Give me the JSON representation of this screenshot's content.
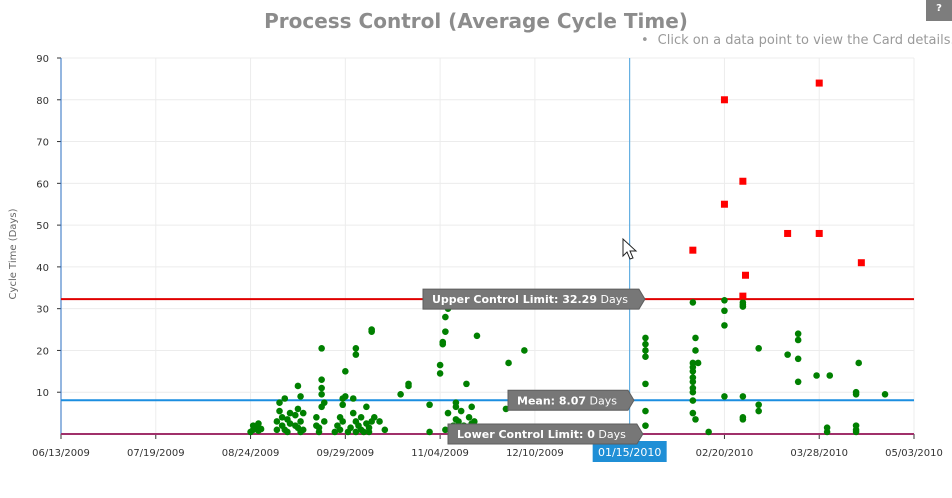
{
  "page": {
    "help_label": "?",
    "hint_bullet": "•",
    "hint_text": "Click on a data point to view the Card details."
  },
  "colors": {
    "normal_point": "#008000",
    "outlier_point": "#ff0000",
    "upper_control_limit": "#e00000",
    "mean": "#1b8ee0",
    "lower_control_limit": "#a0306a",
    "limit_label_bg": "#777777",
    "crosshair": "#4aa3df",
    "axis_highlight_bg": "#1f8fd6",
    "grid": "#ececec"
  },
  "chart_data": {
    "type": "scatter",
    "title": "Process Control (Average Cycle Time)",
    "xlabel": "",
    "ylabel": "Cycle Time (Days)",
    "x_type": "date",
    "xlim": [
      "2009-06-13",
      "2010-05-03"
    ],
    "ylim": [
      0,
      90
    ],
    "x_ticks": [
      "06/13/2009",
      "07/19/2009",
      "08/24/2009",
      "09/29/2009",
      "11/04/2009",
      "12/10/2009",
      "01/15/2010",
      "02/20/2010",
      "03/28/2010",
      "05/03/2010"
    ],
    "y_ticks": [
      10,
      20,
      30,
      40,
      50,
      60,
      70,
      80,
      90
    ],
    "grid": true,
    "crosshair_date": "01/15/2010",
    "reference_lines": [
      {
        "name": "upper_control_limit",
        "label": "Upper Control Limit:",
        "value_text": "32.29",
        "unit": "Days",
        "value": 32.29
      },
      {
        "name": "mean",
        "label": "Mean:",
        "value_text": "8.07",
        "unit": "Days",
        "value": 8.07
      },
      {
        "name": "lower_control_limit",
        "label": "Lower Control Limit:",
        "value_text": "0",
        "unit": "Days",
        "value": 0
      }
    ],
    "series": [
      {
        "marker": "circle",
        "points": [
          [
            "2009-08-24",
            0.5
          ],
          [
            "2009-08-25",
            1
          ],
          [
            "2009-08-25",
            2
          ],
          [
            "2009-08-26",
            1.5
          ],
          [
            "2009-08-27",
            0.8
          ],
          [
            "2009-08-28",
            1.2
          ],
          [
            "2009-08-27",
            2.5
          ],
          [
            "2009-09-03",
            1
          ],
          [
            "2009-09-03",
            3
          ],
          [
            "2009-09-04",
            5.5
          ],
          [
            "2009-09-04",
            7.5
          ],
          [
            "2009-09-05",
            2
          ],
          [
            "2009-09-05",
            4
          ],
          [
            "2009-09-06",
            8.5
          ],
          [
            "2009-09-06",
            1
          ],
          [
            "2009-09-07",
            0.5
          ],
          [
            "2009-09-07",
            3.5
          ],
          [
            "2009-09-08",
            5
          ],
          [
            "2009-09-08",
            2.5
          ],
          [
            "2009-09-10",
            2
          ],
          [
            "2009-09-10",
            4.5
          ],
          [
            "2009-09-11",
            6
          ],
          [
            "2009-09-11",
            11.5
          ],
          [
            "2009-09-12",
            9
          ],
          [
            "2009-09-11",
            1.5
          ],
          [
            "2009-09-12",
            0.5
          ],
          [
            "2009-09-12",
            3
          ],
          [
            "2009-09-13",
            5
          ],
          [
            "2009-09-13",
            1
          ],
          [
            "2009-09-18",
            2
          ],
          [
            "2009-09-18",
            4
          ],
          [
            "2009-09-19",
            0.5
          ],
          [
            "2009-09-19",
            1.5
          ],
          [
            "2009-09-20",
            9.5
          ],
          [
            "2009-09-20",
            20.5
          ],
          [
            "2009-09-20",
            13
          ],
          [
            "2009-09-20",
            11
          ],
          [
            "2009-09-20",
            6.5
          ],
          [
            "2009-09-21",
            3
          ],
          [
            "2009-09-21",
            7.5
          ],
          [
            "2009-09-25",
            0.5
          ],
          [
            "2009-09-26",
            2
          ],
          [
            "2009-09-27",
            4
          ],
          [
            "2009-09-28",
            7
          ],
          [
            "2009-09-28",
            8.5
          ],
          [
            "2009-09-29",
            9
          ],
          [
            "2009-09-29",
            15
          ],
          [
            "2009-09-28",
            3
          ],
          [
            "2009-09-27",
            1
          ],
          [
            "2009-09-30",
            0.5
          ],
          [
            "2009-10-01",
            1.5
          ],
          [
            "2009-10-02",
            5
          ],
          [
            "2009-10-02",
            8.5
          ],
          [
            "2009-10-03",
            3
          ],
          [
            "2009-10-03",
            19
          ],
          [
            "2009-10-03",
            20.5
          ],
          [
            "2009-10-03",
            0.5
          ],
          [
            "2009-10-04",
            2
          ],
          [
            "2009-10-05",
            4
          ],
          [
            "2009-10-05",
            1
          ],
          [
            "2009-10-06",
            0.5
          ],
          [
            "2009-10-07",
            2.5
          ],
          [
            "2009-10-07",
            6.5
          ],
          [
            "2009-10-08",
            0.5
          ],
          [
            "2009-10-08",
            1.5
          ],
          [
            "2009-10-09",
            24.5
          ],
          [
            "2009-10-09",
            25
          ],
          [
            "2009-10-09",
            3
          ],
          [
            "2009-10-10",
            4
          ],
          [
            "2009-10-12",
            3
          ],
          [
            "2009-10-14",
            1
          ],
          [
            "2009-10-20",
            9.5
          ],
          [
            "2009-10-23",
            11.5
          ],
          [
            "2009-10-23",
            12
          ],
          [
            "2009-10-31",
            7
          ],
          [
            "2009-10-31",
            0.5
          ],
          [
            "2009-11-04",
            16.5
          ],
          [
            "2009-11-04",
            14.5
          ],
          [
            "2009-11-05",
            21.5
          ],
          [
            "2009-11-05",
            22
          ],
          [
            "2009-11-06",
            24.5
          ],
          [
            "2009-11-06",
            28
          ],
          [
            "2009-11-06",
            31.5
          ],
          [
            "2009-11-07",
            30
          ],
          [
            "2009-11-06",
            1
          ],
          [
            "2009-11-07",
            5
          ],
          [
            "2009-11-09",
            0.5
          ],
          [
            "2009-11-09",
            2
          ],
          [
            "2009-11-10",
            3.5
          ],
          [
            "2009-11-10",
            6.5
          ],
          [
            "2009-11-10",
            7.5
          ],
          [
            "2009-11-11",
            0.5
          ],
          [
            "2009-11-11",
            1.5
          ],
          [
            "2009-11-11",
            3
          ],
          [
            "2009-11-12",
            5.5
          ],
          [
            "2009-11-12",
            0.5
          ],
          [
            "2009-11-13",
            1
          ],
          [
            "2009-11-13",
            2
          ],
          [
            "2009-11-14",
            12
          ],
          [
            "2009-11-14",
            0.5
          ],
          [
            "2009-11-15",
            4
          ],
          [
            "2009-11-15",
            1.5
          ],
          [
            "2009-11-16",
            6.5
          ],
          [
            "2009-11-16",
            2.5
          ],
          [
            "2009-11-17",
            0.5
          ],
          [
            "2009-11-17",
            1
          ],
          [
            "2009-11-17",
            3
          ],
          [
            "2009-11-18",
            23.5
          ],
          [
            "2009-11-29",
            6
          ],
          [
            "2009-11-29",
            1
          ],
          [
            "2009-11-30",
            17
          ],
          [
            "2009-12-06",
            20
          ],
          [
            "2009-12-08",
            1
          ],
          [
            "2010-01-21",
            21.5
          ],
          [
            "2010-01-21",
            23
          ],
          [
            "2010-01-21",
            2
          ],
          [
            "2010-01-21",
            12
          ],
          [
            "2010-01-21",
            18.5
          ],
          [
            "2010-01-21",
            5.5
          ],
          [
            "2010-01-21",
            20
          ],
          [
            "2010-02-08",
            31.5
          ],
          [
            "2010-02-08",
            17
          ],
          [
            "2010-02-08",
            16
          ],
          [
            "2010-02-08",
            15
          ],
          [
            "2010-02-08",
            13.5
          ],
          [
            "2010-02-08",
            12.5
          ],
          [
            "2010-02-08",
            11
          ],
          [
            "2010-02-08",
            10
          ],
          [
            "2010-02-08",
            8
          ],
          [
            "2010-02-08",
            5
          ],
          [
            "2010-02-09",
            3.5
          ],
          [
            "2010-02-09",
            20
          ],
          [
            "2010-02-09",
            23
          ],
          [
            "2010-02-10",
            17
          ],
          [
            "2010-02-14",
            0.5
          ],
          [
            "2010-02-20",
            32
          ],
          [
            "2010-02-20",
            29.5
          ],
          [
            "2010-02-20",
            26
          ],
          [
            "2010-02-20",
            9
          ],
          [
            "2010-02-27",
            31.5
          ],
          [
            "2010-02-27",
            31
          ],
          [
            "2010-02-27",
            30.5
          ],
          [
            "2010-02-27",
            9
          ],
          [
            "2010-02-27",
            4
          ],
          [
            "2010-02-27",
            3.5
          ],
          [
            "2010-03-05",
            5.5
          ],
          [
            "2010-03-05",
            7
          ],
          [
            "2010-03-05",
            20.5
          ],
          [
            "2010-03-16",
            19
          ],
          [
            "2010-03-20",
            22.5
          ],
          [
            "2010-03-20",
            24
          ],
          [
            "2010-03-20",
            18
          ],
          [
            "2010-03-20",
            12.5
          ],
          [
            "2010-03-27",
            14
          ],
          [
            "2010-03-31",
            1.5
          ],
          [
            "2010-03-31",
            0.5
          ],
          [
            "2010-04-01",
            14
          ],
          [
            "2010-04-11",
            0.5
          ],
          [
            "2010-04-11",
            2
          ],
          [
            "2010-04-11",
            1
          ],
          [
            "2010-04-11",
            10
          ],
          [
            "2010-04-11",
            9.5
          ],
          [
            "2010-04-12",
            17
          ],
          [
            "2010-04-22",
            9.5
          ]
        ]
      },
      {
        "marker": "square",
        "points": [
          [
            "2010-02-08",
            44
          ],
          [
            "2010-02-20",
            80
          ],
          [
            "2010-02-20",
            55
          ],
          [
            "2010-02-27",
            60.5
          ],
          [
            "2010-02-28",
            38
          ],
          [
            "2010-02-27",
            33
          ],
          [
            "2010-03-16",
            48
          ],
          [
            "2010-03-28",
            84
          ],
          [
            "2010-03-28",
            48
          ],
          [
            "2010-04-13",
            41
          ]
        ]
      }
    ]
  }
}
